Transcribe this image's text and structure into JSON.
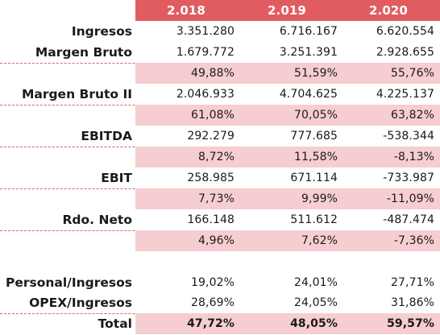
{
  "header": {
    "years": [
      "2.018",
      "2.019",
      "2.020"
    ]
  },
  "rows": {
    "ingresos": {
      "label": "Ingresos",
      "values": [
        "3.351.280",
        "6.716.167",
        "6.620.554"
      ]
    },
    "margen_bruto": {
      "label": "Margen Bruto",
      "values": [
        "1.679.772",
        "3.251.391",
        "2.928.655"
      ]
    },
    "margen_bruto_pct": {
      "values": [
        "49,88%",
        "51,59%",
        "55,76%"
      ]
    },
    "margen_bruto_ii": {
      "label": "Margen Bruto II",
      "values": [
        "2.046.933",
        "4.704.625",
        "4.225.137"
      ]
    },
    "margen_bruto_ii_pct": {
      "values": [
        "61,08%",
        "70,05%",
        "63,82%"
      ]
    },
    "ebitda": {
      "label": "EBITDA",
      "values": [
        "292.279",
        "777.685",
        "-538.344"
      ]
    },
    "ebitda_pct": {
      "values": [
        "8,72%",
        "11,58%",
        "-8,13%"
      ]
    },
    "ebit": {
      "label": "EBIT",
      "values": [
        "258.985",
        "671.114",
        "-733.987"
      ]
    },
    "ebit_pct": {
      "values": [
        "7,73%",
        "9,99%",
        "-11,09%"
      ]
    },
    "rdo_neto": {
      "label": "Rdo. Neto",
      "values": [
        "166.148",
        "511.612",
        "-487.474"
      ]
    },
    "rdo_neto_pct": {
      "values": [
        "4,96%",
        "7,62%",
        "-7,36%"
      ]
    },
    "personal_ingresos": {
      "label": "Personal/Ingresos",
      "values": [
        "19,02%",
        "24,01%",
        "27,71%"
      ]
    },
    "opex_ingresos": {
      "label": "OPEX/Ingresos",
      "values": [
        "28,69%",
        "24,05%",
        "31,86%"
      ]
    },
    "total": {
      "label": "Total",
      "values": [
        "47,72%",
        "48,05%",
        "59,57%"
      ]
    }
  },
  "colors": {
    "header_bg": "#e15c61",
    "percent_band": "#f6cdd0",
    "separator": "#c96b70"
  }
}
